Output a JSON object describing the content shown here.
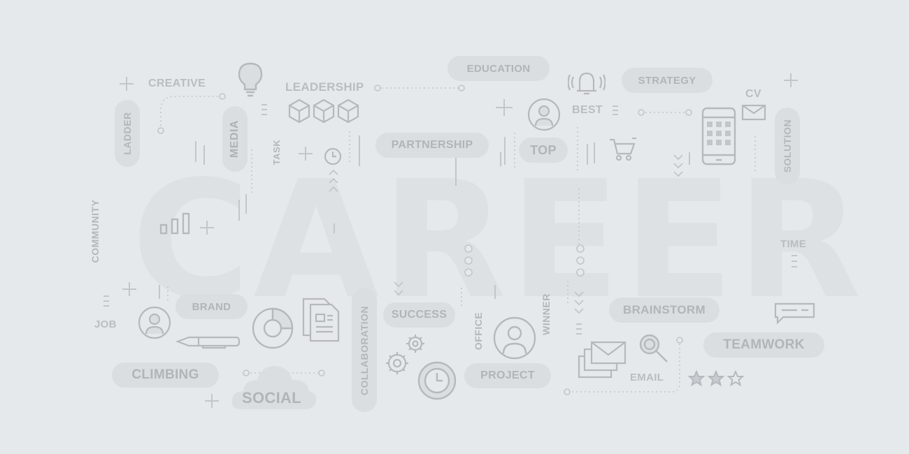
{
  "title": "CAREER",
  "words": {
    "creative": "CREATIVE",
    "leadership": "LEADERSHIP",
    "education": "EDUCATION",
    "strategy": "STRATEGY",
    "cv": "CV",
    "best": "BEST",
    "top": "TOP",
    "partnership": "PARTNERSHIP",
    "ladder": "LADDER",
    "media": "MEDIA",
    "task": "TASK",
    "solution": "SOLUTION",
    "community": "COMMUNITY",
    "time": "TIME",
    "job": "JOB",
    "brand": "BRAND",
    "success": "SUCCESS",
    "collaboration": "COLLABORATION",
    "office": "OFFICE",
    "winner": "WINNER",
    "brainstorm": "BRAINSTORM",
    "teamwork": "TEAMWORK",
    "climbing": "CLIMBING",
    "social": "SOCIAL",
    "project": "PROJECT",
    "email": "EMAIL"
  },
  "colors": {
    "background": "#e6e9ec",
    "big_text": "#dde1e4",
    "pill": "#dadee1",
    "word": "#b9bdc1",
    "icon": "#b5b9bd"
  },
  "icons": [
    "lightbulb-icon",
    "cube-icon",
    "bell-icon",
    "person-icon",
    "shopping-cart-icon",
    "smartphone-icon",
    "envelope-icon",
    "clock-icon",
    "bar-chart-icon",
    "pie-chart-icon",
    "document-icon",
    "pen-icon",
    "gear-icon",
    "stopwatch-icon",
    "mail-stack-icon",
    "magnifier-icon",
    "star-icon",
    "chat-bubble-icon",
    "cloud-icon",
    "sparkle-icon"
  ]
}
